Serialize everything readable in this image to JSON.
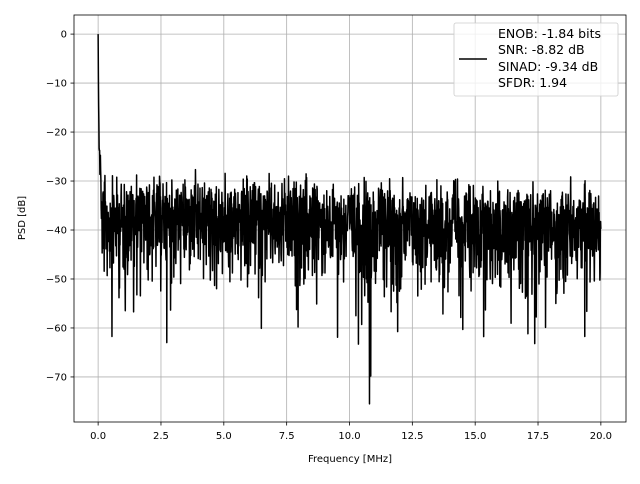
{
  "chart_data": {
    "type": "line",
    "title": "",
    "xlabel": "Frequency [MHz]",
    "ylabel": "PSD [dB]",
    "xlim": [
      -0.96,
      21.0
    ],
    "ylim": [
      -79.2,
      3.9
    ],
    "grid": true,
    "x_ticks": [
      0,
      2.5,
      5,
      7.5,
      10,
      12.5,
      15,
      17.5,
      20
    ],
    "x_tick_labels": [
      "0.0",
      "2.5",
      "5.0",
      "7.5",
      "10.0",
      "12.5",
      "15.0",
      "17.5",
      "20.0"
    ],
    "y_ticks": [
      0,
      -10,
      -20,
      -30,
      -40,
      -50,
      -60,
      -70
    ],
    "y_tick_labels": [
      "0",
      "−10",
      "−20",
      "−30",
      "−40",
      "−50",
      "−60",
      "−70"
    ],
    "legend": {
      "placement": "upper-right",
      "lines": [
        "ENOB: -1.84 bits",
        "SNR: -8.82 dB",
        "SINAD: -9.34 dB",
        "SFDR: 1.94"
      ]
    },
    "series": [
      {
        "name": "PSD",
        "color": "#000000",
        "x_range": [
          0,
          20
        ],
        "num_points": 2000,
        "peak": {
          "x": 0,
          "y": 0
        },
        "noise_floor_mean_db": -36,
        "noise_upper_db": -24,
        "min_point": {
          "x": 10.8,
          "y": -75.5
        },
        "description_of_values": "noise-like PSD, mostly between -25 and -55 dB"
      }
    ]
  }
}
